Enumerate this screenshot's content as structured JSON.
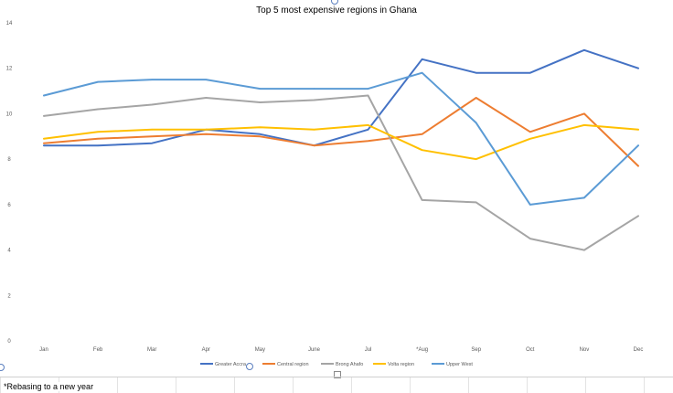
{
  "footnote": "*Rebasing to a new year",
  "chart_data": {
    "type": "line",
    "title": "Top 5 most expensive regions in Ghana",
    "xlabel": "",
    "ylabel": "",
    "categories": [
      "Jan",
      "Feb",
      "Mar",
      "Apr",
      "May",
      "June",
      "Jul",
      "*Aug",
      "Sep",
      "Oct",
      "Nov",
      "Dec"
    ],
    "ylim": [
      0,
      14
    ],
    "yticks": [
      0,
      2,
      4,
      6,
      8,
      10,
      12,
      14
    ],
    "grid": false,
    "legend_position": "bottom",
    "series": [
      {
        "name": "Greater Accra",
        "color": "#4472C4",
        "values": [
          8.6,
          8.6,
          8.7,
          9.3,
          9.1,
          8.6,
          9.3,
          12.4,
          11.8,
          11.8,
          12.8,
          12.0
        ]
      },
      {
        "name": "Central region",
        "color": "#ED7D31",
        "values": [
          8.7,
          8.9,
          9.0,
          9.1,
          9.0,
          8.6,
          8.8,
          9.1,
          10.7,
          9.2,
          10.0,
          7.7
        ]
      },
      {
        "name": "Brong Ahafo",
        "color": "#A5A5A5",
        "values": [
          9.9,
          10.2,
          10.4,
          10.7,
          10.5,
          10.6,
          10.8,
          6.2,
          6.1,
          4.5,
          4.0,
          5.5
        ]
      },
      {
        "name": "Volta region",
        "color": "#FFC000",
        "values": [
          8.9,
          9.2,
          9.3,
          9.3,
          9.4,
          9.3,
          9.5,
          8.4,
          8.0,
          8.9,
          9.5,
          9.3
        ]
      },
      {
        "name": "Upper West",
        "color": "#5B9BD5",
        "values": [
          10.8,
          11.4,
          11.5,
          11.5,
          11.1,
          11.1,
          11.1,
          11.8,
          9.6,
          6.0,
          6.3,
          8.6
        ]
      }
    ]
  }
}
